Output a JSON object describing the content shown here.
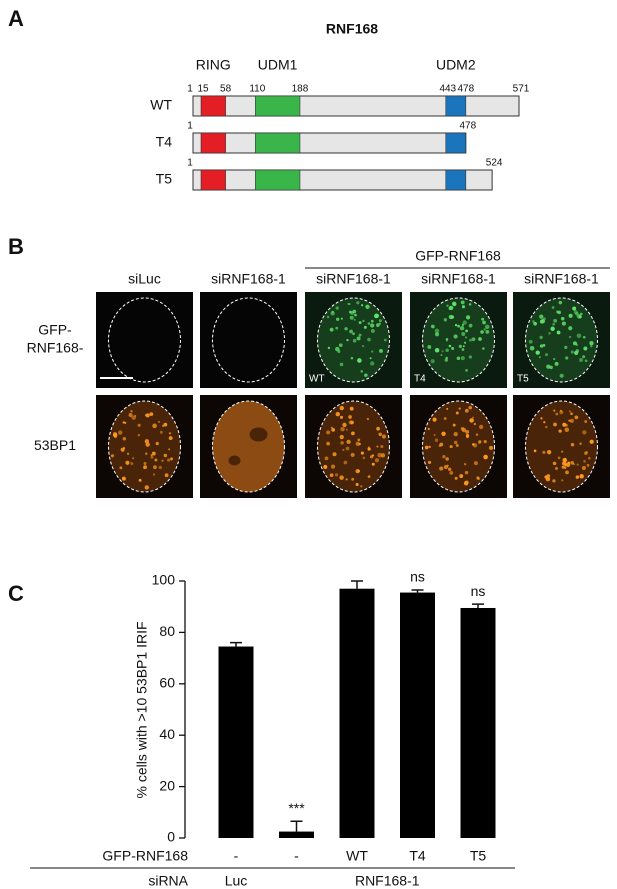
{
  "panel_a": {
    "label": "A",
    "title": "RNF168",
    "domains": [
      {
        "name": "RING",
        "start": 15,
        "end": 58,
        "color": "#e31e24"
      },
      {
        "name": "UDM1",
        "start": 110,
        "end": 188,
        "color": "#3ab54a"
      },
      {
        "name": "UDM2",
        "start": 443,
        "end": 478,
        "color": "#1b75bc"
      }
    ],
    "constructs": [
      {
        "name": "WT",
        "start": 1,
        "length": 571
      },
      {
        "name": "T4",
        "start": 1,
        "length": 478
      },
      {
        "name": "T5",
        "start": 1,
        "length": 524
      }
    ]
  },
  "panel_b": {
    "label": "B",
    "group_header": "GFP-RNF168",
    "columns": [
      "siLuc",
      "siRNF168-1",
      "siRNF168-1",
      "siRNF168-1",
      "siRNF168-1"
    ],
    "rows": [
      [
        "GFP-",
        "RNF168-"
      ],
      [
        "53BP1"
      ]
    ],
    "insets": [
      null,
      null,
      "WT",
      "T4",
      "T5"
    ]
  },
  "panel_c": {
    "label": "C"
  },
  "chart_data": {
    "type": "bar",
    "y_label": "% cells with >10 53BP1 IRIF",
    "row_labels": [
      "GFP-RNF168",
      "siRNA"
    ],
    "categories": [
      "-",
      "-",
      "WT",
      "T4",
      "T5"
    ],
    "sirna": [
      "Luc",
      "RNF168-1",
      null,
      null,
      null
    ],
    "values": [
      74.5,
      2.5,
      97,
      95.5,
      89.5
    ],
    "errors": [
      1.5,
      4,
      3,
      1,
      1.5
    ],
    "annotations": [
      null,
      "***",
      null,
      "ns",
      "ns"
    ],
    "color": "#000000",
    "ylim": [
      0,
      100
    ],
    "yticks": [
      0,
      20,
      40,
      60,
      80,
      100
    ]
  }
}
